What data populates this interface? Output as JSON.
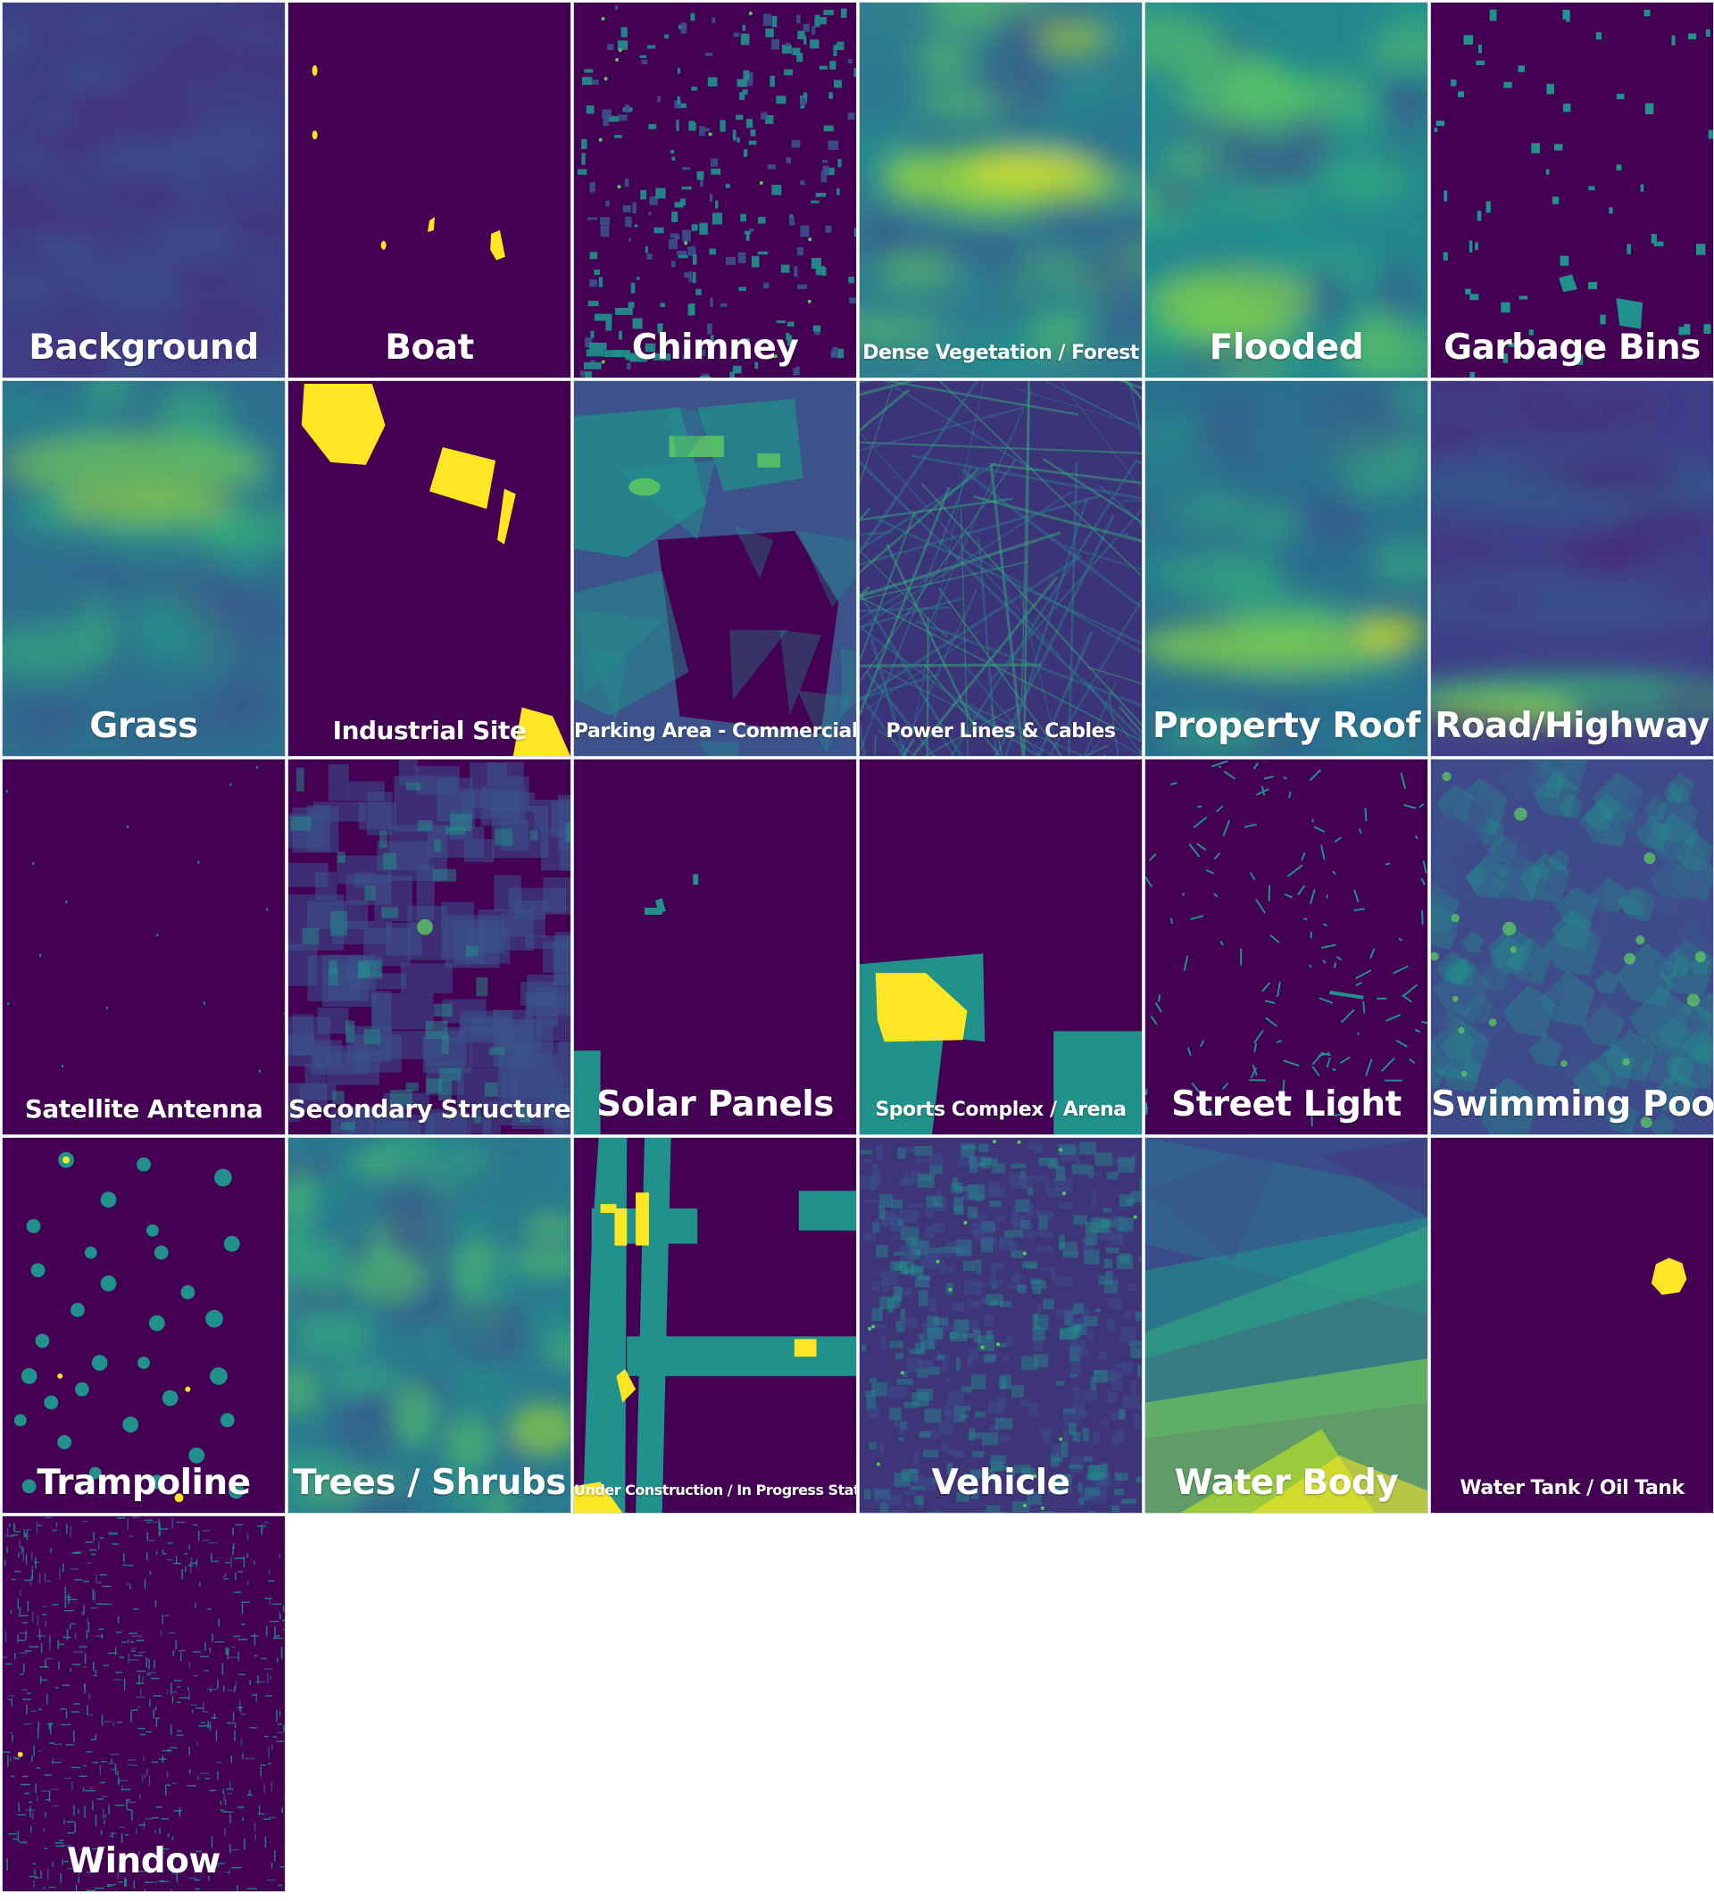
{
  "colors": {
    "background": "#ffffff",
    "mask_low": "#440154",
    "mask_mid_blue": "#3b528b",
    "mask_mid_teal": "#21918c",
    "mask_green": "#5ec962",
    "mask_high": "#fde725"
  },
  "tiles": [
    {
      "label": "Background",
      "pattern": "uniform-dark"
    },
    {
      "label": "Boat",
      "pattern": "sparse-yellow-blobs"
    },
    {
      "label": "Chimney",
      "pattern": "scattered-teal-small"
    },
    {
      "label": "Dense Vegetation / Forest",
      "pattern": "heat-green-yellow"
    },
    {
      "label": "Flooded",
      "pattern": "heat-green"
    },
    {
      "label": "Garbage Bins",
      "pattern": "sparse-teal-small"
    },
    {
      "label": "Grass",
      "pattern": "heat-band"
    },
    {
      "label": "Industrial Site",
      "pattern": "yellow-polygons"
    },
    {
      "label": "Parking Area - Commercial",
      "pattern": "overlapping-polygons"
    },
    {
      "label": "Power Lines & Cables",
      "pattern": "crossing-lines"
    },
    {
      "label": "Property Roof",
      "pattern": "heat-green-low"
    },
    {
      "label": "Road/Highway",
      "pattern": "heat-blue-bands"
    },
    {
      "label": "Satellite Antenna",
      "pattern": "near-empty"
    },
    {
      "label": "Secondary Structure",
      "pattern": "overlapping-rects"
    },
    {
      "label": "Solar Panels",
      "pattern": "sparse-teal-edge"
    },
    {
      "label": "Sports Complex / Arena",
      "pattern": "teal-yellow-blocks"
    },
    {
      "label": "Street Light",
      "pattern": "short-teal-dashes"
    },
    {
      "label": "Swimming Pool",
      "pattern": "overlapping-blobs"
    },
    {
      "label": "Trampoline",
      "pattern": "teal-circles"
    },
    {
      "label": "Trees / Shrubs",
      "pattern": "heat-green-dense"
    },
    {
      "label": "Under Construction / In Progress Status",
      "pattern": "teal-columns"
    },
    {
      "label": "Vehicle",
      "pattern": "dense-small-rects"
    },
    {
      "label": "Water Body",
      "pattern": "heat-wedges"
    },
    {
      "label": "Water Tank / Oil Tank",
      "pattern": "single-yellow-blob"
    },
    {
      "label": "Window",
      "pattern": "tiny-teal-dashes"
    }
  ]
}
